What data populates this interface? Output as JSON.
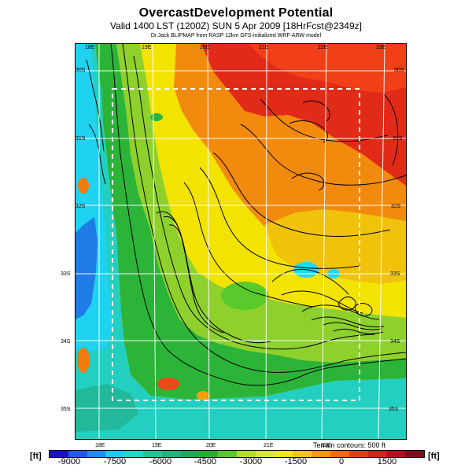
{
  "header": {
    "title": "OvercastDevelopment Potential",
    "subtitle": "Valid 1400 LST (1200Z) SUN 5 Apr 2009 [18HrFcst@2349z]",
    "credit": "Dr.Jack BLIPMAP from RASP 12km GFS-initialized WRF-ARW model"
  },
  "map": {
    "top_longitudes": [
      "18E",
      "19E",
      "20E",
      "21E",
      "22E",
      "23E"
    ],
    "bottom_longitudes": [
      "18E",
      "19E",
      "20E",
      "21E",
      "22E"
    ],
    "left_latitudes": [
      "30S",
      "31S",
      "32S",
      "33S",
      "34S",
      "35S"
    ],
    "right_latitudes": [
      "30S",
      "31S",
      "32S",
      "33S",
      "34S",
      "35S"
    ],
    "terrain_note": "Terrain contours: 500 ft"
  },
  "legend": {
    "unit_left": "[ft]",
    "unit_right": "[ft]",
    "ticks": [
      "-9000",
      "-7500",
      "-6000",
      "-4500",
      "-3000",
      "-1500",
      "0",
      "1500"
    ],
    "colors": [
      "#1a11c8",
      "#1e5af0",
      "#1d8ef6",
      "#20c7ef",
      "#22d7c4",
      "#1ec39b",
      "#1fb37d",
      "#1ea955",
      "#23b12b",
      "#5ac92b",
      "#b3db2a",
      "#d9e73c",
      "#f0ea0d",
      "#f3c80b",
      "#f39a0b",
      "#f46b0f",
      "#ee3715",
      "#df1b1b",
      "#b1121d",
      "#7d0e1a"
    ]
  }
}
